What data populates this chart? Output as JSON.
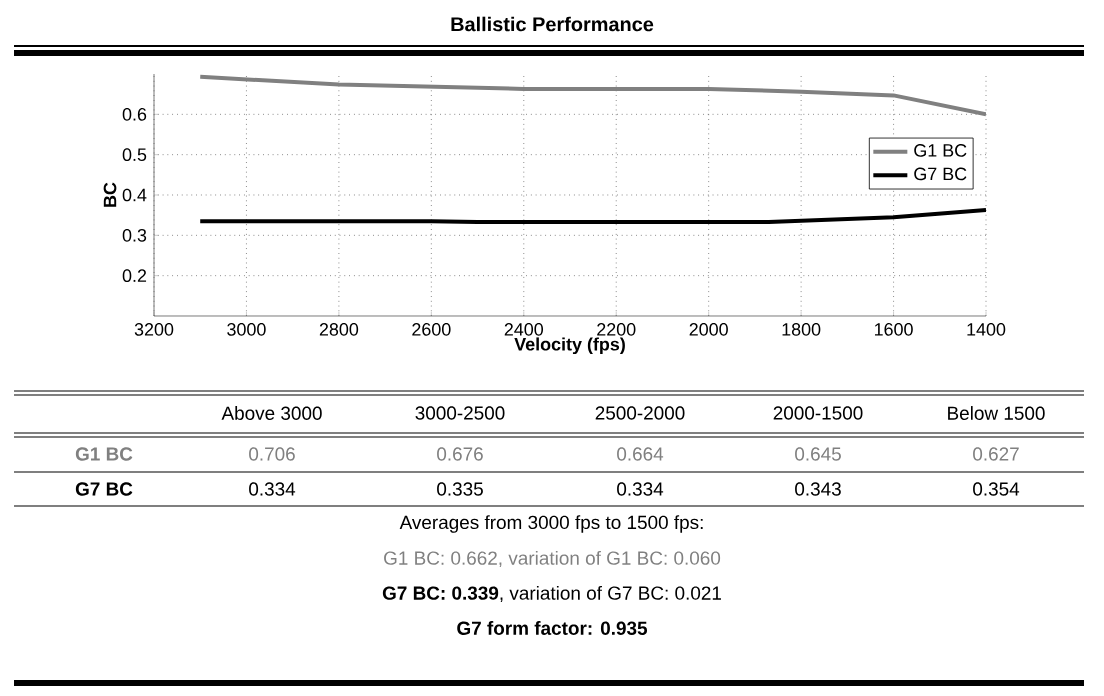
{
  "chart_data": {
    "type": "line",
    "title": "Ballistic Performance",
    "xlabel": "Velocity (fps)",
    "ylabel": "BC",
    "xlim": [
      3200,
      1400
    ],
    "xticks": [
      3200,
      3000,
      2800,
      2600,
      2400,
      2200,
      2000,
      1800,
      1600,
      1400
    ],
    "ylim": [
      0.1,
      0.7
    ],
    "yticks": [
      0.2,
      0.3,
      0.4,
      0.5,
      0.6
    ],
    "grid": true,
    "legend": "right",
    "marker": "none",
    "line_style": "solid",
    "series": [
      {
        "name": "G1 BC",
        "color": "#808080",
        "x": [
          3100,
          2800,
          2400,
          2000,
          1800,
          1600,
          1400
        ],
        "values": [
          0.693,
          0.674,
          0.663,
          0.663,
          0.656,
          0.647,
          0.6
        ]
      },
      {
        "name": "G7 BC",
        "color": "#000000",
        "x": [
          3100,
          2600,
          2500,
          1870,
          1600,
          1400
        ],
        "values": [
          0.335,
          0.335,
          0.333,
          0.333,
          0.345,
          0.363
        ]
      }
    ],
    "annotations": [
      "Above 3000",
      "3000-2500",
      "2500-2000",
      "2000-1500",
      "Below 1500",
      "G1 BC",
      "0.706",
      "0.676",
      "0.664",
      "0.645",
      "0.627",
      "G7 BC",
      "0.334",
      "0.335",
      "0.334",
      "0.343",
      "0.354",
      "Averages from 3000 fps to 1500 fps:",
      "G1 BC: 0.662, variation of G1 BC: 0.060",
      "**G7 BC: 0.339**, variation of G7 BC: 0.021",
      "G7 form factor: 0.935"
    ]
  }
}
